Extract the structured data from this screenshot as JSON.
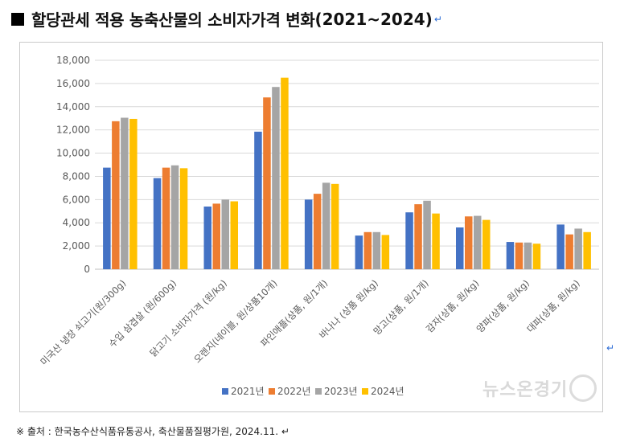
{
  "title": {
    "square": "■",
    "text": "할당관세 적용 농축산물의 소비자가격 변화",
    "period": "(2021~2024)",
    "paragraph_mark": "↵"
  },
  "outer_paragraph_mark": "↵",
  "footnote": "※ 출처 : 한국농수산식품유통공사, 축산물품질평가원, 2024.11. ↵",
  "watermark": {
    "text": "뉴스온경기"
  },
  "chart_data": {
    "type": "bar",
    "categories": [
      "미국산 냉장 쇠고기(원/300g)",
      "수입 삼겹살 (원/600g)",
      "닭고기 소비자가격 (원/kg)",
      "오렌지(네이블, 원/상품10개)",
      "파인애플(상품, 원/1개)",
      "바나나 (상품 원/kg)",
      "망고(상품, 원/1개)",
      "감자(상품, 원/kg)",
      "양파(상품, 원/kg)",
      "대파(상품, 원/kg)"
    ],
    "series": [
      {
        "name": "2021년",
        "color": "#4472c4",
        "values": [
          8750,
          7850,
          5400,
          11850,
          6000,
          2900,
          4900,
          3600,
          2350,
          3850
        ]
      },
      {
        "name": "2022년",
        "color": "#ed7d31",
        "values": [
          12750,
          8750,
          5650,
          14800,
          6500,
          3200,
          5600,
          4550,
          2300,
          3000
        ]
      },
      {
        "name": "2023년",
        "color": "#a5a5a5",
        "values": [
          13050,
          8950,
          6000,
          15700,
          7450,
          3200,
          5900,
          4600,
          2300,
          3500
        ]
      },
      {
        "name": "2024년",
        "color": "#ffc000",
        "values": [
          12950,
          8700,
          5850,
          16500,
          7350,
          2950,
          4800,
          4250,
          2200,
          3200
        ]
      }
    ],
    "y_ticks": [
      "18,000",
      "16,000",
      "14,000",
      "12,000",
      "10,000",
      "8,000",
      "6,000",
      "4,000",
      "2,000",
      "0"
    ],
    "ylim": [
      0,
      18000
    ],
    "grid": true,
    "legend_position": "bottom",
    "xlabel": "",
    "ylabel": ""
  }
}
